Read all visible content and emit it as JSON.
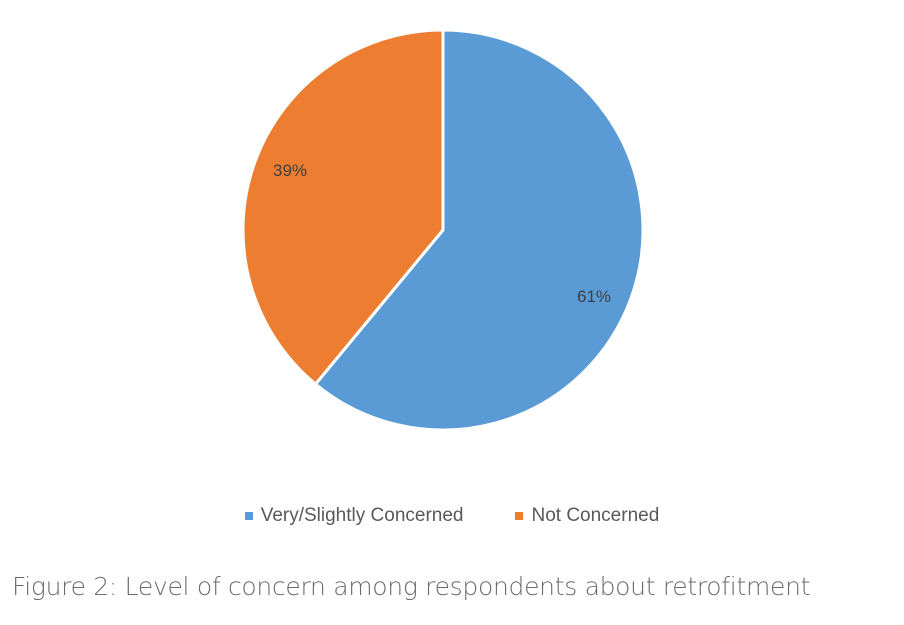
{
  "chart_data": {
    "type": "pie",
    "title": "",
    "categories": [
      "Very/Slightly Concerned",
      "Not Concerned"
    ],
    "values": [
      61,
      39
    ],
    "labels": [
      "61%",
      "39%"
    ],
    "colors": [
      "#5B9BD5",
      "#ED7D31"
    ],
    "legend_position": "bottom"
  },
  "legend": {
    "items": [
      {
        "label": "Very/Slightly Concerned",
        "color": "#5B9BD5"
      },
      {
        "label": "Not Concerned",
        "color": "#ED7D31"
      }
    ]
  },
  "caption": "Figure 2: Level of concern among respondents about retrofitment"
}
